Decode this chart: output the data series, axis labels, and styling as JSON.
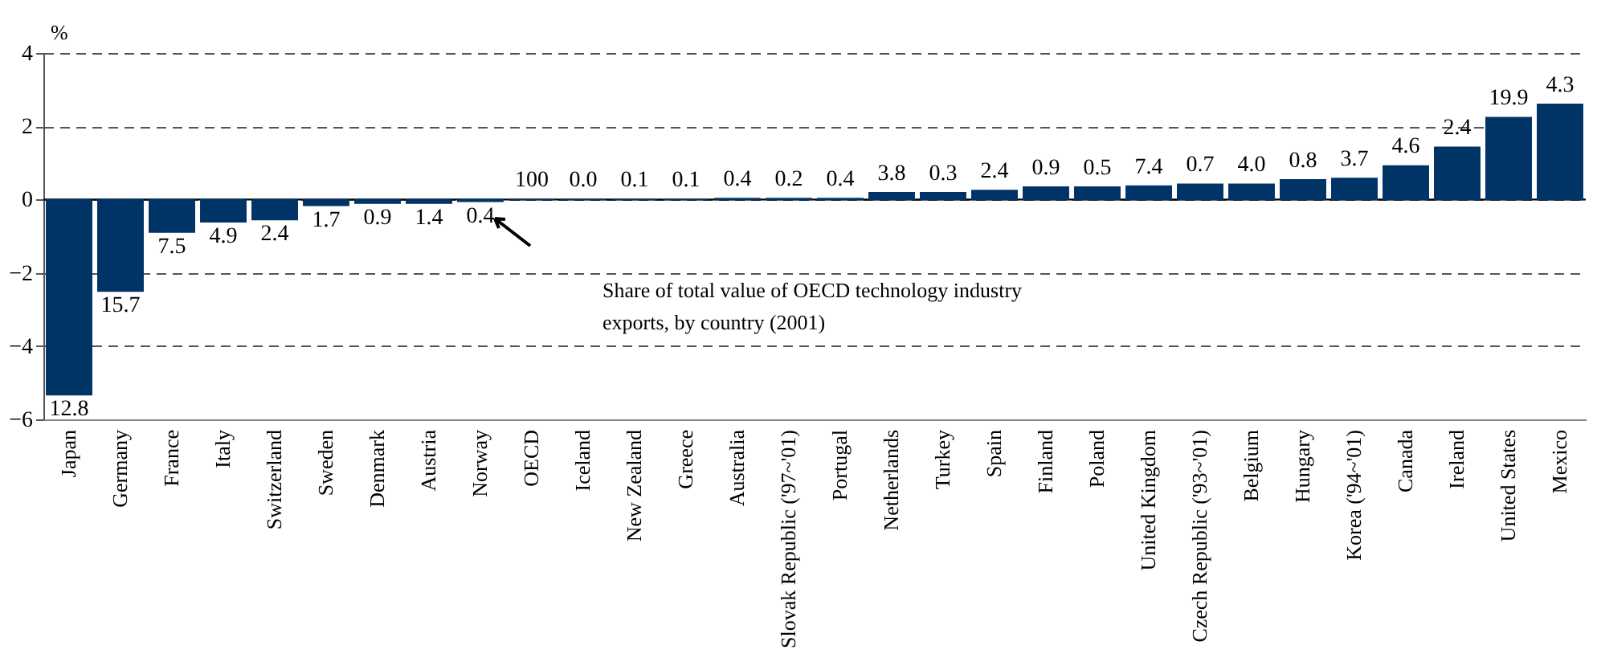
{
  "chart_data": {
    "type": "bar",
    "ylabel": "%",
    "categories": [
      "Japan",
      "Germany",
      "France",
      "Italy",
      "Switzerland",
      "Sweden",
      "Denmark",
      "Austria",
      "Norway",
      "OECD",
      "Iceland",
      "New Zealand",
      "Greece",
      "Australia",
      "Slovak Republic ('97~'01)",
      "Portugal",
      "Netherlands",
      "Turkey",
      "Spain",
      "Finland",
      "Poland",
      "United Kingdom",
      "Czech Republic ('93~'01)",
      "Belgium",
      "Hungary",
      "Korea ('94~'01)",
      "Canada",
      "Ireland",
      "United States",
      "Mexico"
    ],
    "values": [
      -5.33,
      -2.5,
      -0.89,
      -0.61,
      -0.55,
      -0.16,
      -0.1,
      -0.1,
      -0.05,
      0,
      0,
      0,
      0,
      0.03,
      0.03,
      0.03,
      0.19,
      0.19,
      0.25,
      0.34,
      0.34,
      0.37,
      0.42,
      0.42,
      0.54,
      0.58,
      0.92,
      1.43,
      2.24,
      2.6
    ],
    "color": "#003366",
    "ylim": [
      -6,
      4
    ],
    "yticks": [
      -6,
      -4,
      -2,
      0,
      2,
      4
    ],
    "grid": "y",
    "line_style": "dashed",
    "annotations": [
      "Share of total value of OECD technology industry exports, by country (2001)",
      {
        "text": "12.8",
        "x": "Japan",
        "y": -5.33
      },
      {
        "text": "15.7",
        "x": "Germany",
        "y": -2.5
      },
      {
        "text": "7.5",
        "x": "France",
        "y": -0.89
      },
      {
        "text": "4.9",
        "x": "Italy",
        "y": -0.61
      },
      {
        "text": "2.4",
        "x": "Switzerland",
        "y": -0.55
      },
      {
        "text": "1.7",
        "x": "Sweden",
        "y": -0.16
      },
      {
        "text": "0.9",
        "x": "Denmark",
        "y": -0.1
      },
      {
        "text": "1.4",
        "x": "Austria",
        "y": -0.1
      },
      {
        "text": "0.4",
        "x": "Norway",
        "y": -0.05
      },
      {
        "text": "100",
        "x": "OECD",
        "y": 0
      },
      {
        "text": "0.0",
        "x": "Iceland",
        "y": 0
      },
      {
        "text": "0.1",
        "x": "New Zealand",
        "y": 0
      },
      {
        "text": "0.1",
        "x": "Greece",
        "y": 0
      },
      {
        "text": "0.4",
        "x": "Australia",
        "y": 0.03
      },
      {
        "text": "0.2",
        "x": "Slovak Republic ('97~'01)",
        "y": 0.03
      },
      {
        "text": "0.4",
        "x": "Portugal",
        "y": 0.03
      },
      {
        "text": "3.8",
        "x": "Netherlands",
        "y": 0.19
      },
      {
        "text": "0.3",
        "x": "Turkey",
        "y": 0.19
      },
      {
        "text": "2.4",
        "x": "Spain",
        "y": 0.25
      },
      {
        "text": "0.9",
        "x": "Finland",
        "y": 0.34
      },
      {
        "text": "0.5",
        "x": "Poland",
        "y": 0.34
      },
      {
        "text": "7.4",
        "x": "United Kingdom",
        "y": 0.37
      },
      {
        "text": "0.7",
        "x": "Czech Republic ('93~'01)",
        "y": 0.42
      },
      {
        "text": "4.0",
        "x": "Belgium",
        "y": 0.42
      },
      {
        "text": "0.8",
        "x": "Hungary",
        "y": 0.54
      },
      {
        "text": "3.7",
        "x": "Korea ('94~'01)",
        "y": 0.58
      },
      {
        "text": "4.6",
        "x": "Canada",
        "y": 0.92
      },
      {
        "text": "2.4",
        "x": "Ireland",
        "y": 1.43
      },
      {
        "text": "19.9",
        "x": "United States",
        "y": 2.24
      },
      {
        "text": "4.3",
        "x": "Mexico",
        "y": 2.6
      }
    ]
  }
}
